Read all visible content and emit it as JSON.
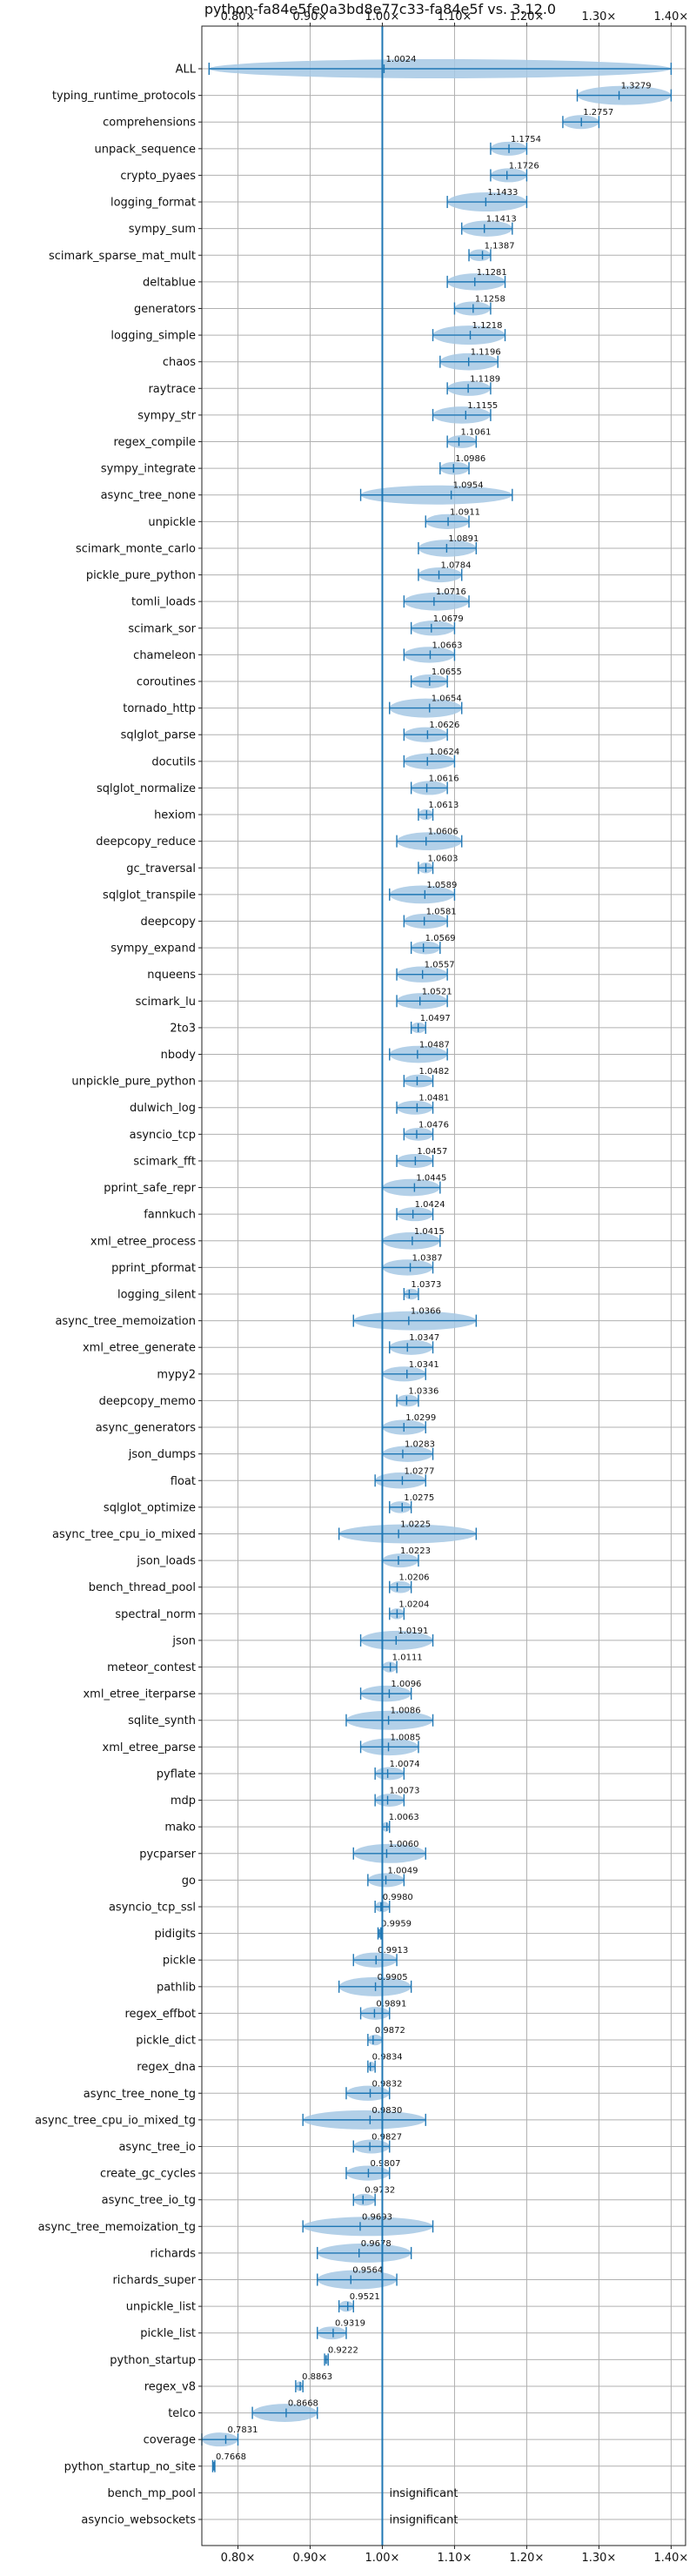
{
  "chart_data": {
    "type": "violin",
    "title": "python-fa84e5fe0a3bd8e77c33-fa84e5f vs. 3.12.0",
    "xlim": [
      0.75,
      1.42
    ],
    "xticks": [
      "0.80×",
      "0.90×",
      "1.00×",
      "1.10×",
      "1.20×",
      "1.30×",
      "1.40×"
    ],
    "xtick_values": [
      0.8,
      0.9,
      1.0,
      1.1,
      1.2,
      1.3,
      1.4
    ],
    "reference_line": 1.0,
    "color": "#1f77b4",
    "fill_color": "#a6c8e4",
    "grid": true,
    "benchmarks": [
      {
        "name": "ALL",
        "label": "1.0024",
        "median": 1.0024,
        "min": 0.76,
        "max": 1.4
      },
      {
        "name": "typing_runtime_protocols",
        "label": "1.3279",
        "median": 1.3279,
        "min": 1.27,
        "max": 1.4
      },
      {
        "name": "comprehensions",
        "label": "1.2757",
        "median": 1.2757,
        "min": 1.25,
        "max": 1.3
      },
      {
        "name": "unpack_sequence",
        "label": "1.1754",
        "median": 1.1754,
        "min": 1.15,
        "max": 1.2
      },
      {
        "name": "crypto_pyaes",
        "label": "1.1726",
        "median": 1.1726,
        "min": 1.15,
        "max": 1.2
      },
      {
        "name": "logging_format",
        "label": "1.1433",
        "median": 1.1433,
        "min": 1.09,
        "max": 1.2
      },
      {
        "name": "sympy_sum",
        "label": "1.1413",
        "median": 1.1413,
        "min": 1.11,
        "max": 1.18
      },
      {
        "name": "scimark_sparse_mat_mult",
        "label": "1.1387",
        "median": 1.1387,
        "min": 1.12,
        "max": 1.15
      },
      {
        "name": "deltablue",
        "label": "1.1281",
        "median": 1.1281,
        "min": 1.09,
        "max": 1.17
      },
      {
        "name": "generators",
        "label": "1.1258",
        "median": 1.1258,
        "min": 1.1,
        "max": 1.15
      },
      {
        "name": "logging_simple",
        "label": "1.1218",
        "median": 1.1218,
        "min": 1.07,
        "max": 1.17
      },
      {
        "name": "chaos",
        "label": "1.1196",
        "median": 1.1196,
        "min": 1.08,
        "max": 1.16
      },
      {
        "name": "raytrace",
        "label": "1.1189",
        "median": 1.1189,
        "min": 1.09,
        "max": 1.15
      },
      {
        "name": "sympy_str",
        "label": "1.1155",
        "median": 1.1155,
        "min": 1.07,
        "max": 1.15
      },
      {
        "name": "regex_compile",
        "label": "1.1061",
        "median": 1.1061,
        "min": 1.09,
        "max": 1.13
      },
      {
        "name": "sympy_integrate",
        "label": "1.0986",
        "median": 1.0986,
        "min": 1.08,
        "max": 1.12
      },
      {
        "name": "async_tree_none",
        "label": "1.0954",
        "median": 1.0954,
        "min": 0.97,
        "max": 1.18
      },
      {
        "name": "unpickle",
        "label": "1.0911",
        "median": 1.0911,
        "min": 1.06,
        "max": 1.12
      },
      {
        "name": "scimark_monte_carlo",
        "label": "1.0891",
        "median": 1.0891,
        "min": 1.05,
        "max": 1.13
      },
      {
        "name": "pickle_pure_python",
        "label": "1.0784",
        "median": 1.0784,
        "min": 1.05,
        "max": 1.11
      },
      {
        "name": "tomli_loads",
        "label": "1.0716",
        "median": 1.0716,
        "min": 1.03,
        "max": 1.12
      },
      {
        "name": "scimark_sor",
        "label": "1.0679",
        "median": 1.0679,
        "min": 1.04,
        "max": 1.1
      },
      {
        "name": "chameleon",
        "label": "1.0663",
        "median": 1.0663,
        "min": 1.03,
        "max": 1.1
      },
      {
        "name": "coroutines",
        "label": "1.0655",
        "median": 1.0655,
        "min": 1.04,
        "max": 1.09
      },
      {
        "name": "tornado_http",
        "label": "1.0654",
        "median": 1.0654,
        "min": 1.01,
        "max": 1.11
      },
      {
        "name": "sqlglot_parse",
        "label": "1.0626",
        "median": 1.0626,
        "min": 1.03,
        "max": 1.09
      },
      {
        "name": "docutils",
        "label": "1.0624",
        "median": 1.0624,
        "min": 1.03,
        "max": 1.1
      },
      {
        "name": "sqlglot_normalize",
        "label": "1.0616",
        "median": 1.0616,
        "min": 1.04,
        "max": 1.09
      },
      {
        "name": "hexiom",
        "label": "1.0613",
        "median": 1.0613,
        "min": 1.05,
        "max": 1.07
      },
      {
        "name": "deepcopy_reduce",
        "label": "1.0606",
        "median": 1.0606,
        "min": 1.02,
        "max": 1.11
      },
      {
        "name": "gc_traversal",
        "label": "1.0603",
        "median": 1.0603,
        "min": 1.05,
        "max": 1.07
      },
      {
        "name": "sqlglot_transpile",
        "label": "1.0589",
        "median": 1.0589,
        "min": 1.01,
        "max": 1.1
      },
      {
        "name": "deepcopy",
        "label": "1.0581",
        "median": 1.0581,
        "min": 1.03,
        "max": 1.09
      },
      {
        "name": "sympy_expand",
        "label": "1.0569",
        "median": 1.0569,
        "min": 1.04,
        "max": 1.08
      },
      {
        "name": "nqueens",
        "label": "1.0557",
        "median": 1.0557,
        "min": 1.02,
        "max": 1.09
      },
      {
        "name": "scimark_lu",
        "label": "1.0521",
        "median": 1.0521,
        "min": 1.02,
        "max": 1.09
      },
      {
        "name": "2to3",
        "label": "1.0497",
        "median": 1.0497,
        "min": 1.04,
        "max": 1.06
      },
      {
        "name": "nbody",
        "label": "1.0487",
        "median": 1.0487,
        "min": 1.01,
        "max": 1.09
      },
      {
        "name": "unpickle_pure_python",
        "label": "1.0482",
        "median": 1.0482,
        "min": 1.03,
        "max": 1.07
      },
      {
        "name": "dulwich_log",
        "label": "1.0481",
        "median": 1.0481,
        "min": 1.02,
        "max": 1.07
      },
      {
        "name": "asyncio_tcp",
        "label": "1.0476",
        "median": 1.0476,
        "min": 1.03,
        "max": 1.07
      },
      {
        "name": "scimark_fft",
        "label": "1.0457",
        "median": 1.0457,
        "min": 1.02,
        "max": 1.07
      },
      {
        "name": "pprint_safe_repr",
        "label": "1.0445",
        "median": 1.0445,
        "min": 1.0,
        "max": 1.08
      },
      {
        "name": "fannkuch",
        "label": "1.0424",
        "median": 1.0424,
        "min": 1.02,
        "max": 1.07
      },
      {
        "name": "xml_etree_process",
        "label": "1.0415",
        "median": 1.0415,
        "min": 1.0,
        "max": 1.08
      },
      {
        "name": "pprint_pformat",
        "label": "1.0387",
        "median": 1.0387,
        "min": 1.0,
        "max": 1.07
      },
      {
        "name": "logging_silent",
        "label": "1.0373",
        "median": 1.0373,
        "min": 1.03,
        "max": 1.05
      },
      {
        "name": "async_tree_memoization",
        "label": "1.0366",
        "median": 1.0366,
        "min": 0.96,
        "max": 1.13
      },
      {
        "name": "xml_etree_generate",
        "label": "1.0347",
        "median": 1.0347,
        "min": 1.01,
        "max": 1.07
      },
      {
        "name": "mypy2",
        "label": "1.0341",
        "median": 1.0341,
        "min": 1.0,
        "max": 1.06
      },
      {
        "name": "deepcopy_memo",
        "label": "1.0336",
        "median": 1.0336,
        "min": 1.02,
        "max": 1.05
      },
      {
        "name": "async_generators",
        "label": "1.0299",
        "median": 1.0299,
        "min": 1.0,
        "max": 1.06
      },
      {
        "name": "json_dumps",
        "label": "1.0283",
        "median": 1.0283,
        "min": 1.0,
        "max": 1.07
      },
      {
        "name": "float",
        "label": "1.0277",
        "median": 1.0277,
        "min": 0.99,
        "max": 1.06
      },
      {
        "name": "sqlglot_optimize",
        "label": "1.0275",
        "median": 1.0275,
        "min": 1.01,
        "max": 1.04
      },
      {
        "name": "async_tree_cpu_io_mixed",
        "label": "1.0225",
        "median": 1.0225,
        "min": 0.94,
        "max": 1.13
      },
      {
        "name": "json_loads",
        "label": "1.0223",
        "median": 1.0223,
        "min": 1.0,
        "max": 1.05
      },
      {
        "name": "bench_thread_pool",
        "label": "1.0206",
        "median": 1.0206,
        "min": 1.01,
        "max": 1.04
      },
      {
        "name": "spectral_norm",
        "label": "1.0204",
        "median": 1.0204,
        "min": 1.01,
        "max": 1.03
      },
      {
        "name": "json",
        "label": "1.0191",
        "median": 1.0191,
        "min": 0.97,
        "max": 1.07
      },
      {
        "name": "meteor_contest",
        "label": "1.0111",
        "median": 1.0111,
        "min": 1.0,
        "max": 1.02
      },
      {
        "name": "xml_etree_iterparse",
        "label": "1.0096",
        "median": 1.0096,
        "min": 0.97,
        "max": 1.04
      },
      {
        "name": "sqlite_synth",
        "label": "1.0086",
        "median": 1.0086,
        "min": 0.95,
        "max": 1.07
      },
      {
        "name": "xml_etree_parse",
        "label": "1.0085",
        "median": 1.0085,
        "min": 0.97,
        "max": 1.05
      },
      {
        "name": "pyflate",
        "label": "1.0074",
        "median": 1.0074,
        "min": 0.99,
        "max": 1.03
      },
      {
        "name": "mdp",
        "label": "1.0073",
        "median": 1.0073,
        "min": 0.99,
        "max": 1.03
      },
      {
        "name": "mako",
        "label": "1.0063",
        "median": 1.0063,
        "min": 1.0,
        "max": 1.01
      },
      {
        "name": "pycparser",
        "label": "1.0060",
        "median": 1.006,
        "min": 0.96,
        "max": 1.06
      },
      {
        "name": "go",
        "label": "1.0049",
        "median": 1.0049,
        "min": 0.98,
        "max": 1.03
      },
      {
        "name": "asyncio_tcp_ssl",
        "label": "0.9980",
        "median": 0.998,
        "min": 0.99,
        "max": 1.01
      },
      {
        "name": "pidigits",
        "label": "0.9959",
        "median": 0.9959,
        "min": 0.994,
        "max": 0.998
      },
      {
        "name": "pickle",
        "label": "0.9913",
        "median": 0.9913,
        "min": 0.96,
        "max": 1.02
      },
      {
        "name": "pathlib",
        "label": "0.9905",
        "median": 0.9905,
        "min": 0.94,
        "max": 1.04
      },
      {
        "name": "regex_effbot",
        "label": "0.9891",
        "median": 0.9891,
        "min": 0.97,
        "max": 1.01
      },
      {
        "name": "pickle_dict",
        "label": "0.9872",
        "median": 0.9872,
        "min": 0.98,
        "max": 1.0
      },
      {
        "name": "regex_dna",
        "label": "0.9834",
        "median": 0.9834,
        "min": 0.98,
        "max": 0.99
      },
      {
        "name": "async_tree_none_tg",
        "label": "0.9832",
        "median": 0.9832,
        "min": 0.95,
        "max": 1.01
      },
      {
        "name": "async_tree_cpu_io_mixed_tg",
        "label": "0.9830",
        "median": 0.983,
        "min": 0.89,
        "max": 1.06
      },
      {
        "name": "async_tree_io",
        "label": "0.9827",
        "median": 0.9827,
        "min": 0.96,
        "max": 1.01
      },
      {
        "name": "create_gc_cycles",
        "label": "0.9807",
        "median": 0.9807,
        "min": 0.95,
        "max": 1.01
      },
      {
        "name": "async_tree_io_tg",
        "label": "0.9732",
        "median": 0.9732,
        "min": 0.96,
        "max": 0.99
      },
      {
        "name": "async_tree_memoization_tg",
        "label": "0.9693",
        "median": 0.9693,
        "min": 0.89,
        "max": 1.07
      },
      {
        "name": "richards",
        "label": "0.9678",
        "median": 0.9678,
        "min": 0.91,
        "max": 1.04
      },
      {
        "name": "richards_super",
        "label": "0.9564",
        "median": 0.9564,
        "min": 0.91,
        "max": 1.02
      },
      {
        "name": "unpickle_list",
        "label": "0.9521",
        "median": 0.9521,
        "min": 0.94,
        "max": 0.96
      },
      {
        "name": "pickle_list",
        "label": "0.9319",
        "median": 0.9319,
        "min": 0.91,
        "max": 0.95
      },
      {
        "name": "python_startup",
        "label": "0.9222",
        "median": 0.9222,
        "min": 0.92,
        "max": 0.925
      },
      {
        "name": "regex_v8",
        "label": "0.8863",
        "median": 0.8863,
        "min": 0.88,
        "max": 0.89
      },
      {
        "name": "telco",
        "label": "0.8668",
        "median": 0.8668,
        "min": 0.82,
        "max": 0.91
      },
      {
        "name": "coverage",
        "label": "0.7831",
        "median": 0.7831,
        "min": 0.75,
        "max": 0.8
      },
      {
        "name": "python_startup_no_site",
        "label": "0.7668",
        "median": 0.7668,
        "min": 0.765,
        "max": 0.768
      },
      {
        "name": "bench_mp_pool",
        "label": "insignificant",
        "median": null,
        "min": null,
        "max": null
      },
      {
        "name": "asyncio_websockets",
        "label": "insignificant",
        "median": null,
        "min": null,
        "max": null
      }
    ]
  }
}
